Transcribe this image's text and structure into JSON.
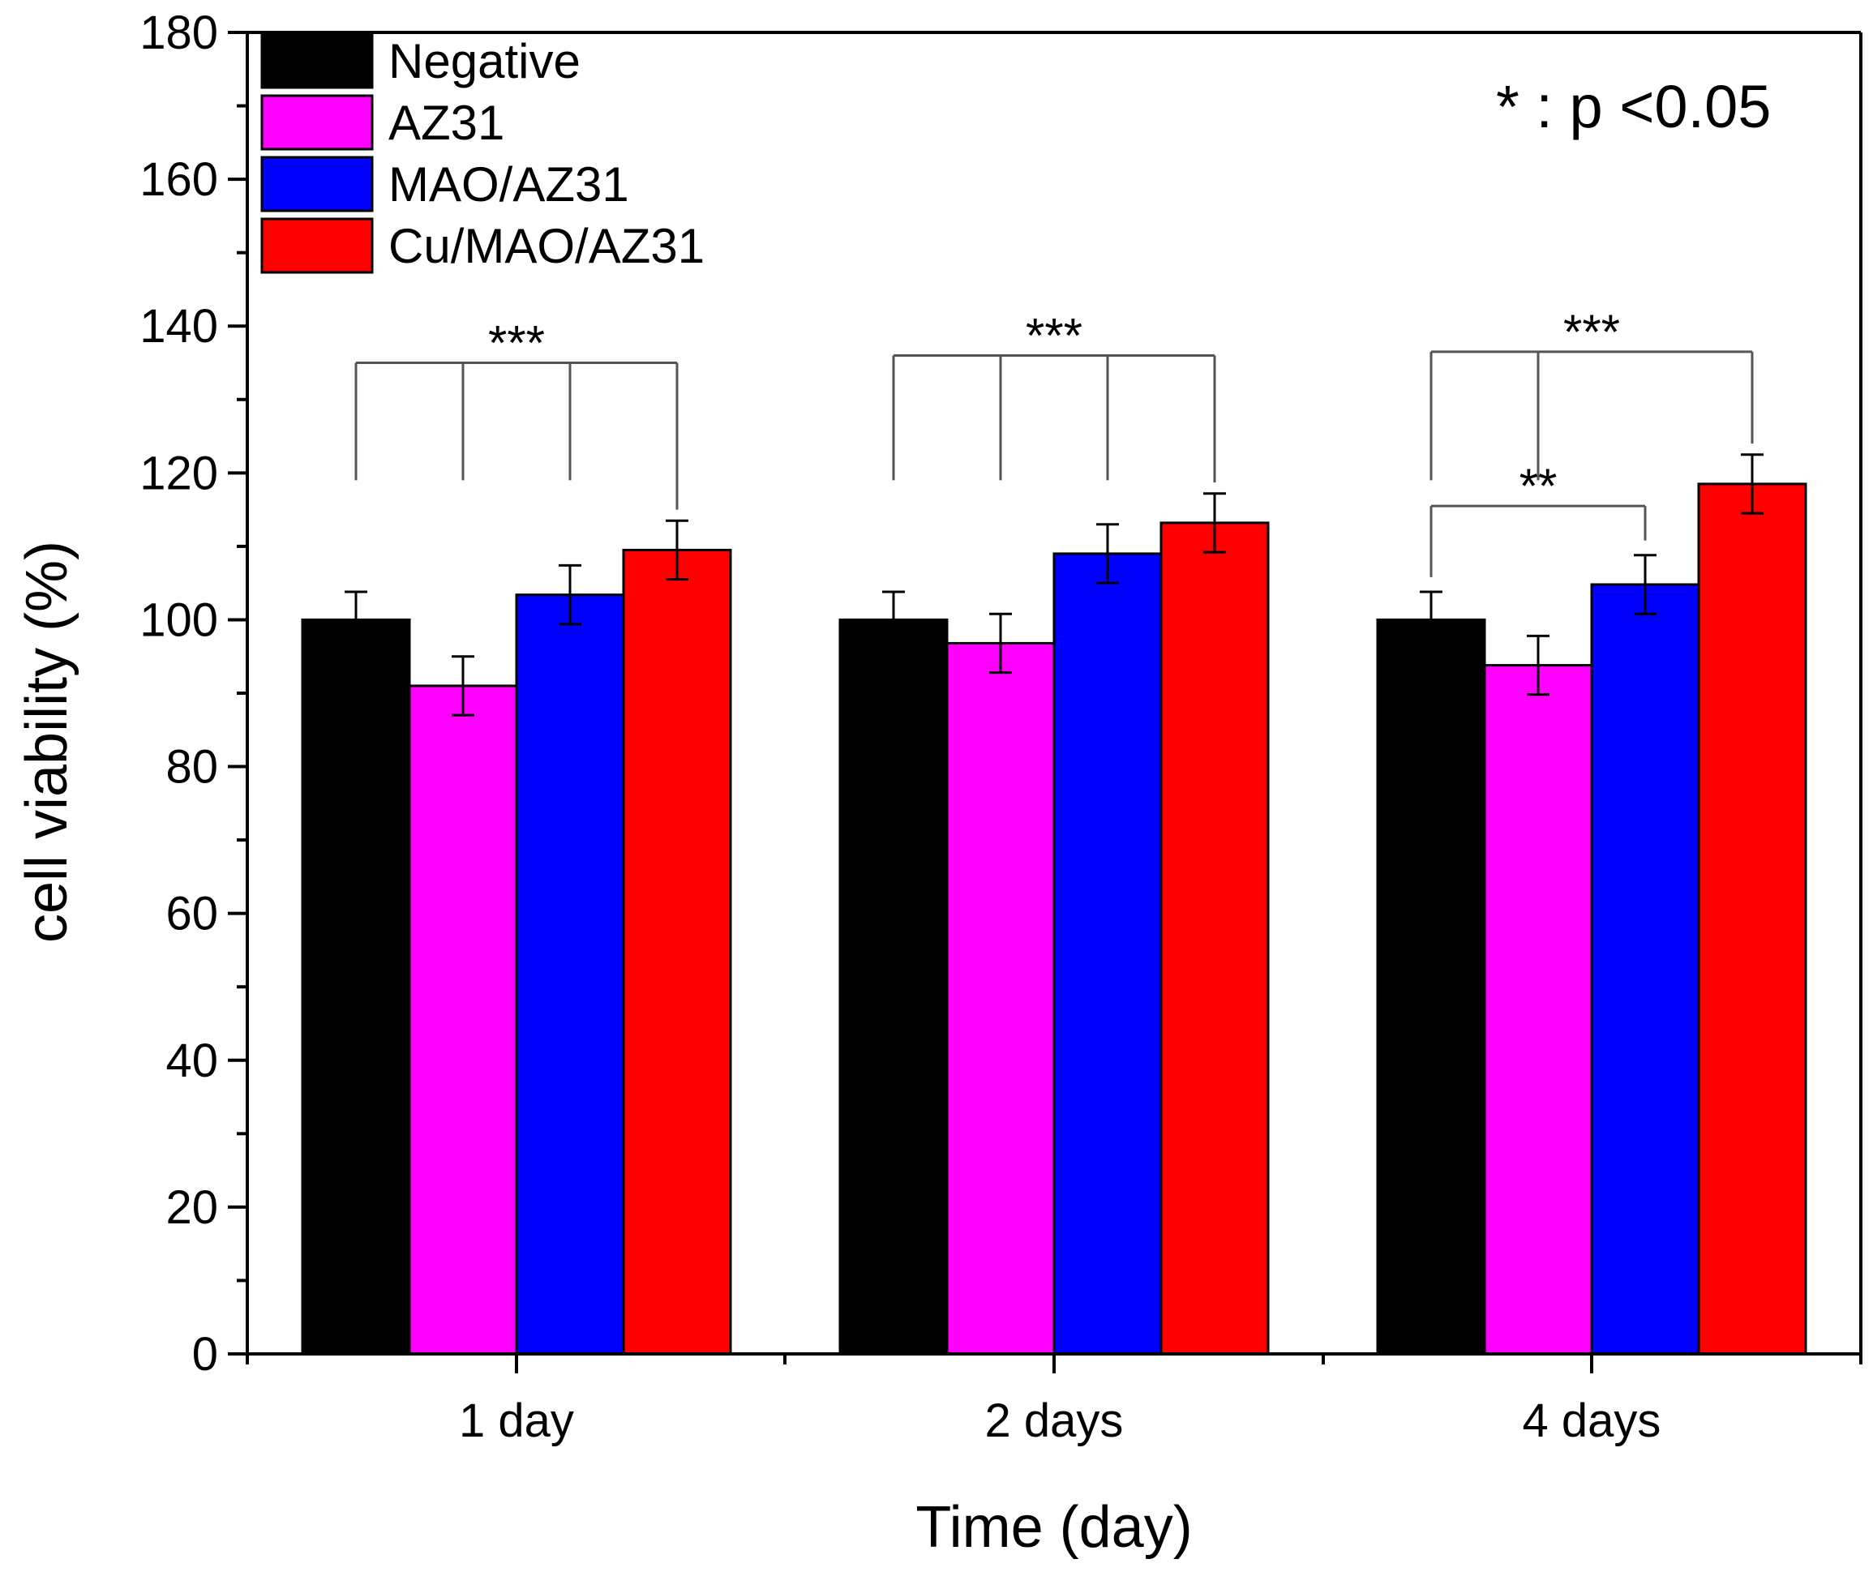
{
  "chart_data": {
    "type": "bar",
    "title": "",
    "xlabel": "Time (day)",
    "ylabel": "cell viability (%)",
    "ylim": [
      0,
      180
    ],
    "yticks": [
      0,
      20,
      40,
      60,
      80,
      100,
      120,
      140,
      160,
      180
    ],
    "grid": false,
    "legend_position": "top-left",
    "categories": [
      "1 day",
      "2 days",
      "4 days"
    ],
    "series": [
      {
        "name": "Negative",
        "color": "#000000",
        "values": [
          100,
          100,
          100
        ],
        "errors": [
          3.8,
          3.8,
          3.8
        ]
      },
      {
        "name": "AZ31",
        "color": "#ff00ff",
        "values": [
          91,
          96.8,
          93.8
        ],
        "errors": [
          4,
          4,
          4
        ]
      },
      {
        "name": "MAO/AZ31",
        "color": "#0000ff",
        "values": [
          103.4,
          109,
          104.8
        ],
        "errors": [
          4,
          4,
          4
        ]
      },
      {
        "name": "Cu/MAO/AZ31",
        "color": "#ff0000",
        "values": [
          109.5,
          113.2,
          118.5
        ],
        "errors": [
          4,
          4,
          4
        ]
      }
    ],
    "annotations": {
      "p_note": "* : p <0.05",
      "significance": [
        {
          "label": "***",
          "category": 0,
          "from_series": 0,
          "to_series": [
            1,
            2,
            3
          ],
          "level": 135
        },
        {
          "label": "***",
          "category": 1,
          "from_series": 0,
          "to_series": [
            1,
            2,
            3
          ],
          "level": 136
        },
        {
          "label": "***",
          "category": 2,
          "from_series": 0,
          "to_series": [
            1,
            3
          ],
          "level": 136.5
        },
        {
          "label": "**",
          "category": 2,
          "from_series": 0,
          "to_series": [
            2
          ],
          "level": 115.5
        }
      ]
    }
  }
}
